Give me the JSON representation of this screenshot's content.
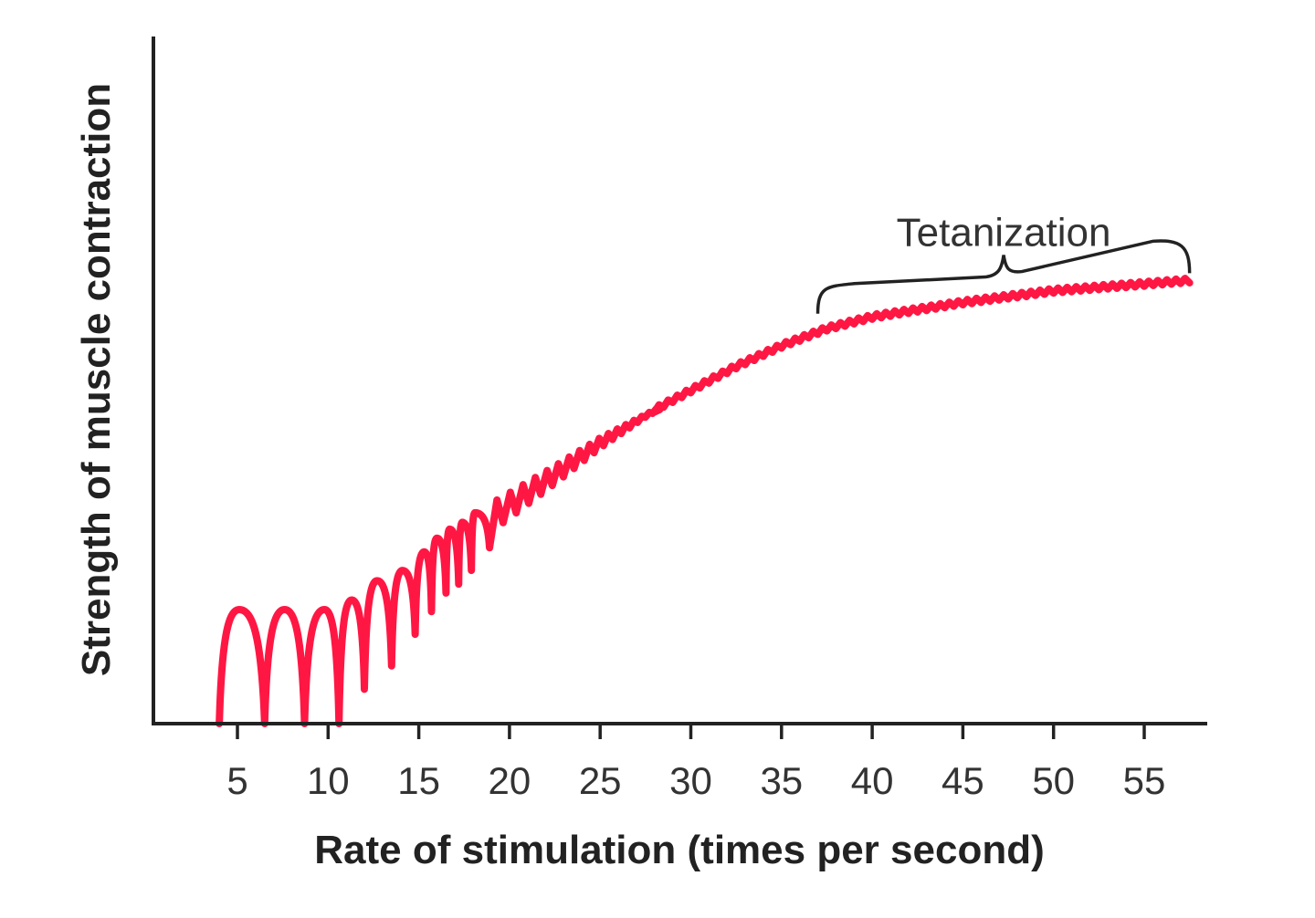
{
  "chart_data": {
    "type": "line",
    "title": "",
    "xlabel": "Rate of stimulation (times per second)",
    "ylabel": "Strength of muscle contraction",
    "xlim": [
      0.4,
      58
    ],
    "ylim": [
      0,
      100
    ],
    "x_ticks": [
      5,
      10,
      15,
      20,
      25,
      30,
      35,
      40,
      45,
      50,
      55
    ],
    "y_ticks": [],
    "grid": false,
    "line_color": "#ff1744",
    "twitches": [
      {
        "start": 4.0,
        "peak_x": 5.1,
        "peak": 16.6,
        "trough_x": 6.5,
        "trough": 0
      },
      {
        "peak_x": 7.6,
        "peak": 16.6,
        "trough_x": 8.7,
        "trough": 0
      },
      {
        "peak_x": 9.8,
        "peak": 16.6,
        "trough_x": 10.6,
        "trough": 0
      },
      {
        "peak_x": 11.3,
        "peak": 18,
        "trough_x": 12.0,
        "trough": 5
      },
      {
        "peak_x": 12.7,
        "peak": 20.8,
        "trough_x": 13.5,
        "trough": 8.4
      },
      {
        "peak_x": 14.1,
        "peak": 22.3,
        "trough_x": 14.8,
        "trough": 13
      },
      {
        "peak_x": 15.3,
        "peak": 25,
        "trough_x": 15.7,
        "trough": 16.3
      },
      {
        "peak_x": 16.0,
        "peak": 27,
        "trough_x": 16.5,
        "trough": 19
      },
      {
        "peak_x": 16.7,
        "peak": 28.3,
        "trough_x": 17.2,
        "trough": 20.3
      },
      {
        "peak_x": 17.4,
        "peak": 29.3,
        "trough_x": 17.9,
        "trough": 22.3
      },
      {
        "peak_x": 18.1,
        "peak": 30.7,
        "trough_x": 18.9,
        "trough": 25.6
      }
    ],
    "upper_envelope": {
      "x": [
        18.1,
        20,
        22.5,
        25,
        27.5,
        30,
        32.5,
        35,
        37.5,
        40,
        45,
        50,
        55,
        57.5
      ],
      "y": [
        30.7,
        33.6,
        37.5,
        41.6,
        45,
        48.5,
        52,
        55,
        57.5,
        59.2,
        61.3,
        63,
        64,
        64.5
      ]
    },
    "annotations": [
      {
        "text": "Tetanization",
        "type": "brace",
        "x_range": [
          37,
          57.5
        ]
      }
    ]
  }
}
